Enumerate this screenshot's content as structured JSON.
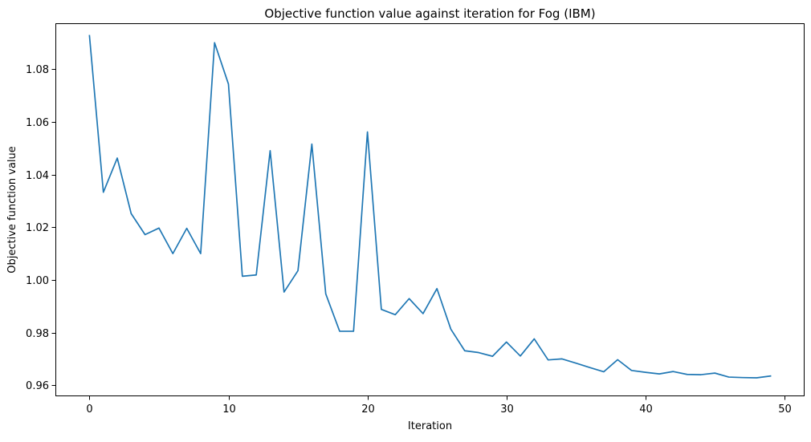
{
  "chart_data": {
    "type": "line",
    "title": "Objective function value against iteration for Fog (IBM)",
    "xlabel": "Iteration",
    "ylabel": "Objective function value",
    "xlim": [
      -2.45,
      51.45
    ],
    "ylim": [
      0.9558,
      1.0975
    ],
    "x_ticks": [
      0,
      10,
      20,
      30,
      40,
      50
    ],
    "x_tick_labels": [
      "0",
      "10",
      "20",
      "30",
      "40",
      "50"
    ],
    "y_ticks": [
      0.96,
      0.98,
      1.0,
      1.02,
      1.04,
      1.06,
      1.08
    ],
    "y_tick_labels": [
      "0.96",
      "0.98",
      "1.00",
      "1.02",
      "1.04",
      "1.06",
      "1.08"
    ],
    "grid": false,
    "legend": "none",
    "series": [
      {
        "color": "#1f77b4",
        "x": [
          0,
          1,
          2,
          3,
          4,
          5,
          6,
          7,
          8,
          9,
          10,
          11,
          12,
          13,
          14,
          15,
          16,
          17,
          18,
          19,
          20,
          21,
          22,
          23,
          24,
          25,
          26,
          27,
          28,
          29,
          30,
          31,
          32,
          33,
          34,
          35,
          36,
          37,
          38,
          39,
          40,
          41,
          42,
          43,
          44,
          45,
          46,
          47,
          48,
          49
        ],
        "y": [
          1.0928,
          1.0333,
          1.0463,
          1.0252,
          1.0172,
          1.0197,
          1.01,
          1.0196,
          1.01,
          1.0901,
          1.0744,
          1.0014,
          1.0019,
          1.0491,
          0.9954,
          1.0035,
          1.0516,
          0.9947,
          0.9805,
          0.9805,
          1.0562,
          0.9888,
          0.9868,
          0.9929,
          0.9872,
          0.9967,
          0.9813,
          0.9731,
          0.9724,
          0.971,
          0.9764,
          0.9711,
          0.9776,
          0.9696,
          0.97,
          0.9684,
          0.9667,
          0.9651,
          0.9697,
          0.9656,
          0.9649,
          0.9643,
          0.9652,
          0.9641,
          0.964,
          0.9646,
          0.9631,
          0.9629,
          0.9628,
          0.9635
        ]
      }
    ]
  }
}
